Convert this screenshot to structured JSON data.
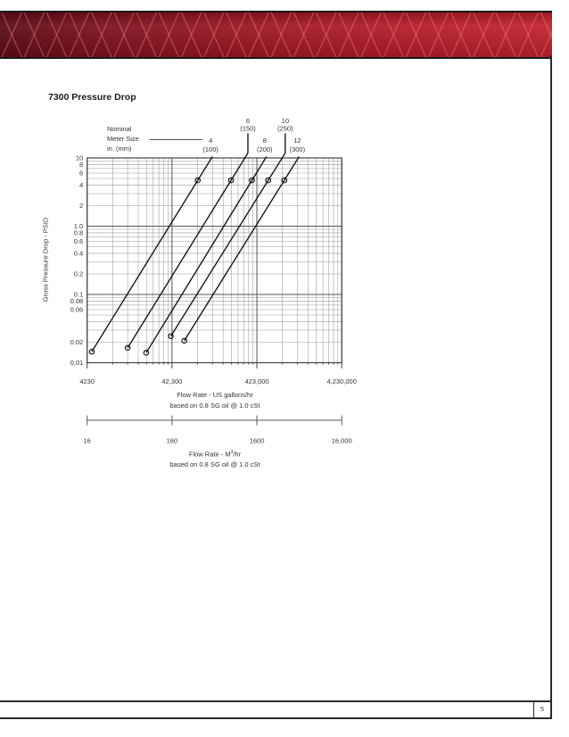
{
  "page": {
    "title": "7300 Pressure Drop"
  },
  "footer": {
    "page_number": "5"
  },
  "chart_data": {
    "type": "line",
    "title": "7300 Pressure Drop",
    "scale": "log-log",
    "grid": "on",
    "annotation": {
      "lines": [
        "Nominal",
        "Meter Size",
        "in. (mm)"
      ]
    },
    "x_axis": {
      "title": "Flow Rate - US gallons/hr",
      "subtitle": "based on 0.8 SG oil @ 1.0 cSt",
      "min": 4230,
      "max": 4230000,
      "ticks": [
        {
          "value": 4230,
          "label": "4230"
        },
        {
          "value": 42300,
          "label": "42,300"
        },
        {
          "value": 423000,
          "label": "423,000"
        },
        {
          "value": 4230000,
          "label": "4,230,000"
        }
      ]
    },
    "x_axis_secondary": {
      "title_prefix": "Flow Rate - M",
      "title_sup": "3",
      "title_suffix": "/hr",
      "subtitle": "based on 0.8 SG oil @ 1.0 cSt",
      "min": 16,
      "max": 16000,
      "ticks": [
        {
          "value": 16,
          "label": "16"
        },
        {
          "value": 160,
          "label": "160"
        },
        {
          "value": 1600,
          "label": "1600"
        },
        {
          "value": 16000,
          "label": "16,000"
        }
      ]
    },
    "y_axis": {
      "title": "Gross Pressure Drop - PSID",
      "min": 0.01,
      "max": 10,
      "tick_labels": [
        {
          "value": 10,
          "label": "10"
        },
        {
          "value": 8,
          "label": "8"
        },
        {
          "value": 6,
          "label": "6"
        },
        {
          "value": 4,
          "label": "4"
        },
        {
          "value": 2,
          "label": "2"
        },
        {
          "value": 1.0,
          "label": "1.0"
        },
        {
          "value": 0.8,
          "label": "0.8"
        },
        {
          "value": 0.6,
          "label": "0.6"
        },
        {
          "value": 0.4,
          "label": "0.4"
        },
        {
          "value": 0.2,
          "label": "0.2"
        },
        {
          "value": 0.1,
          "label": "0.1"
        },
        {
          "value": 0.08,
          "label": "0.08"
        },
        {
          "value": 0.06,
          "label": "0.06"
        },
        {
          "value": 0.02,
          "label": "0.02"
        },
        {
          "value": 0.01,
          "label": "0.01"
        }
      ]
    },
    "series": [
      {
        "size_in": "4",
        "size_mm": "(100)",
        "callout": "inline",
        "points": [
          [
            4800,
            0.0145
          ],
          [
            85000,
            4.7
          ]
        ]
      },
      {
        "size_in": "6",
        "size_mm": "(150)",
        "callout": "vertical",
        "points": [
          [
            12700,
            0.0165
          ],
          [
            210000,
            4.7
          ]
        ]
      },
      {
        "size_in": "8",
        "size_mm": "(200)",
        "callout": "inline",
        "points": [
          [
            21000,
            0.014
          ],
          [
            370000,
            4.7
          ]
        ]
      },
      {
        "size_in": "10",
        "size_mm": "(250)",
        "callout": "vertical",
        "points": [
          [
            41000,
            0.0245
          ],
          [
            575000,
            4.7
          ]
        ]
      },
      {
        "size_in": "12",
        "size_mm": "(300)",
        "callout": "inline",
        "points": [
          [
            59000,
            0.021
          ],
          [
            890000,
            4.7
          ]
        ]
      }
    ],
    "colors": {
      "line": "#111111",
      "grid_minor": "#9a9a9a",
      "grid_major": "#555555",
      "band_red": "#b51d2a"
    }
  }
}
